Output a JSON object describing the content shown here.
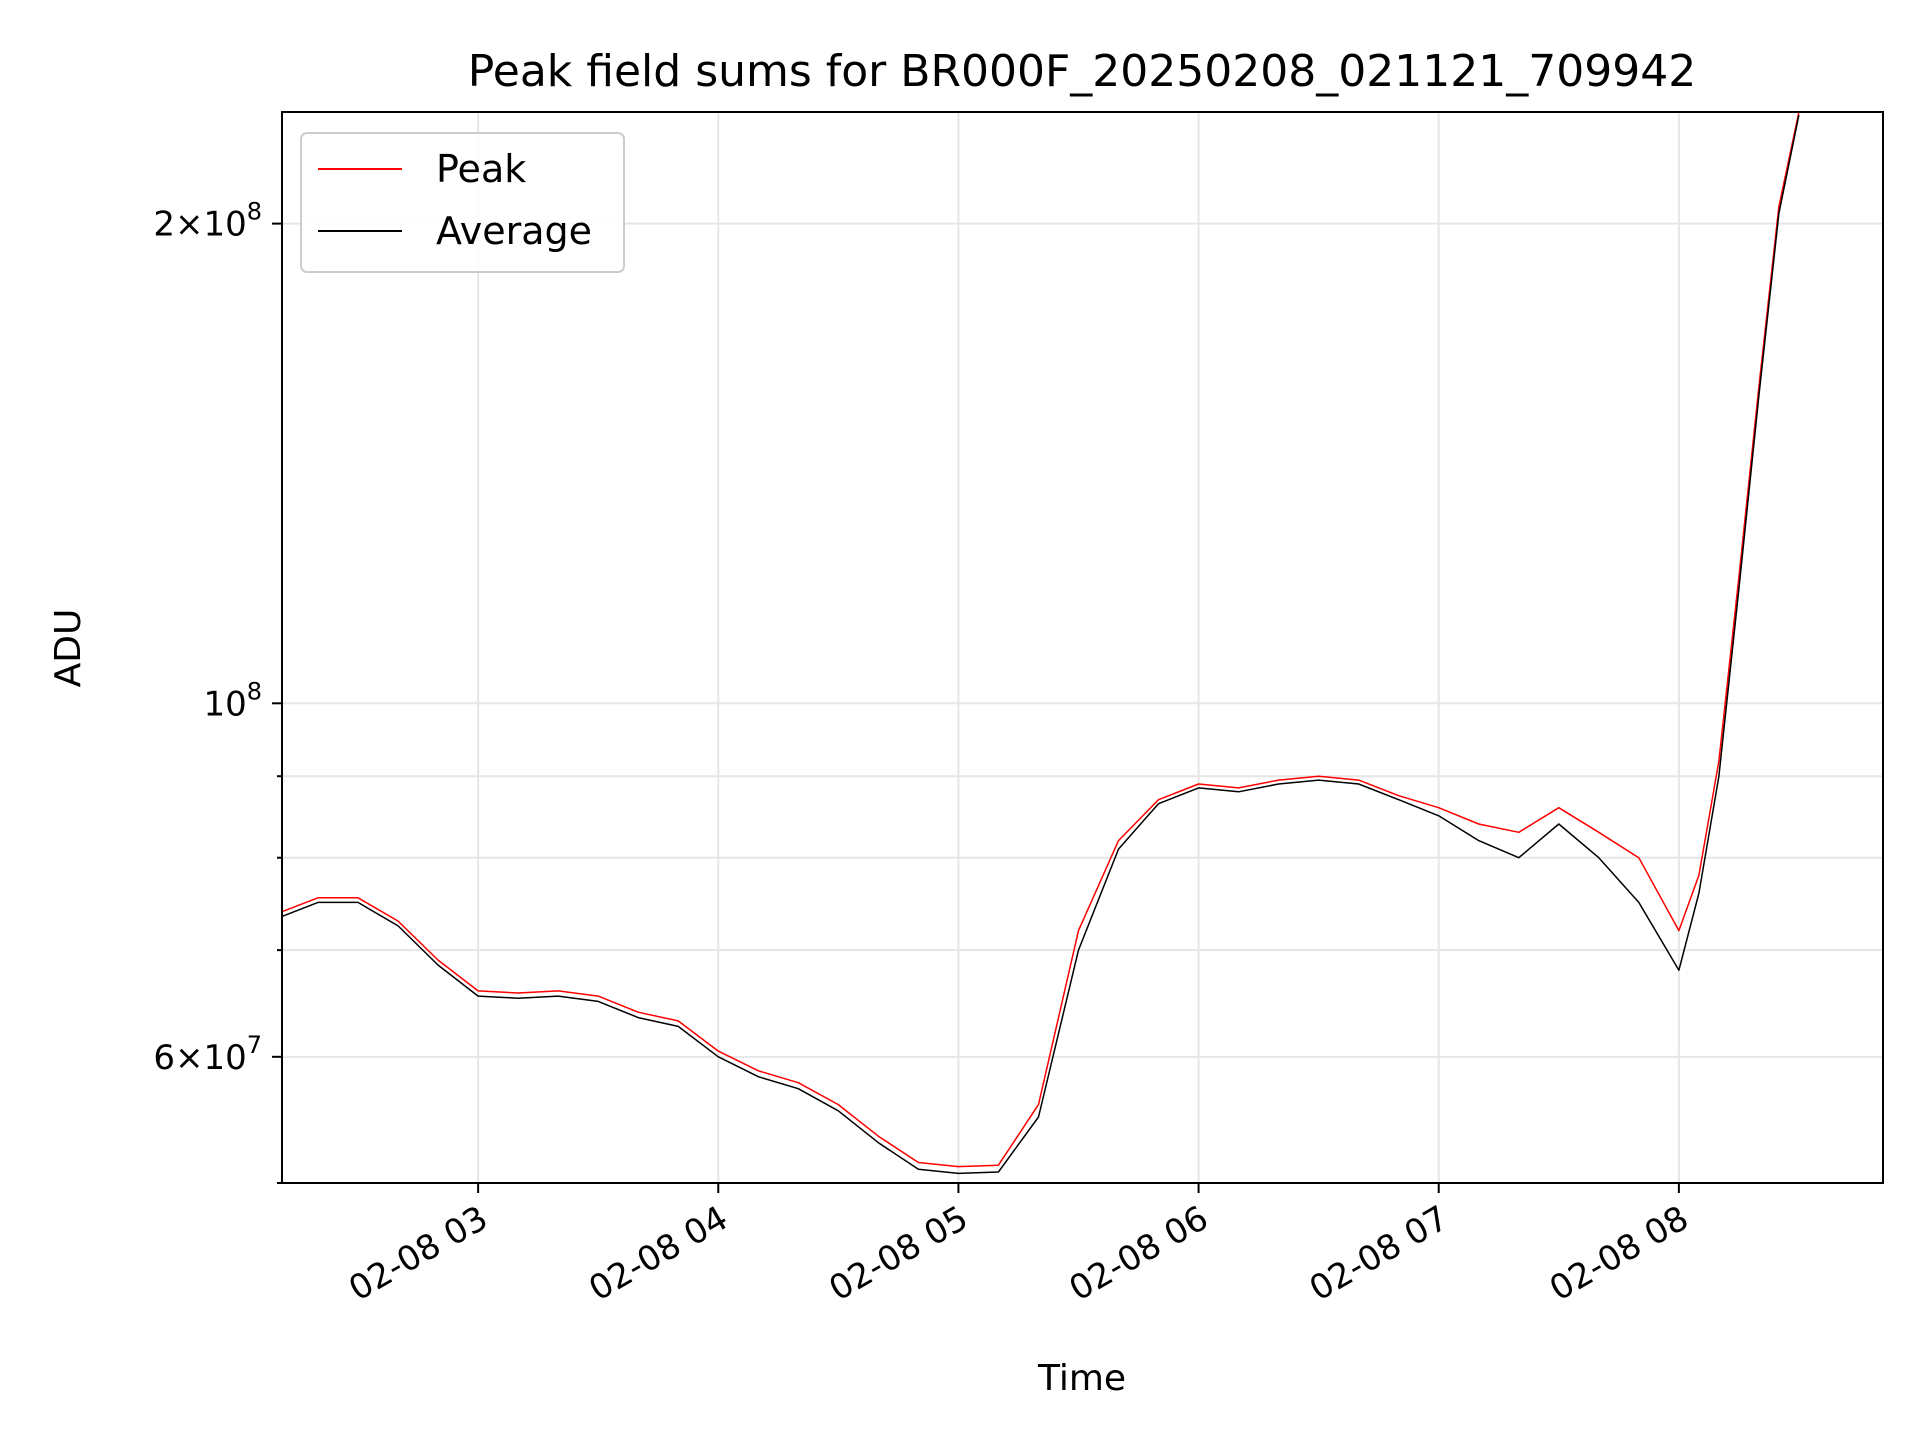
{
  "chart_data": {
    "type": "line",
    "title": "Peak field sums for BR000F_20250208_021121_709942",
    "xlabel": "Time",
    "ylabel": "ADU",
    "y_scale": "log",
    "xlim": [
      "02-08 02:11",
      "02-08 08:51"
    ],
    "ylim": [
      50000000,
      235000000
    ],
    "grid": true,
    "legend_position": "top-left",
    "x_ticks": [
      "02-08 03",
      "02-08 04",
      "02-08 05",
      "02-08 06",
      "02-08 07",
      "02-08 08"
    ],
    "y_ticks": [
      {
        "base": "6",
        "exp": "7",
        "value": 60000000
      },
      {
        "base": "",
        "exp": "8",
        "value": 100000000
      },
      {
        "base": "2",
        "exp": "8",
        "value": 200000000
      }
    ],
    "series": [
      {
        "name": "Peak",
        "color": "#ff0000",
        "x": [
          "02-08 02:11",
          "02-08 02:20",
          "02-08 02:30",
          "02-08 02:40",
          "02-08 02:50",
          "02-08 03:00",
          "02-08 03:10",
          "02-08 03:20",
          "02-08 03:30",
          "02-08 03:40",
          "02-08 03:50",
          "02-08 04:00",
          "02-08 04:10",
          "02-08 04:20",
          "02-08 04:30",
          "02-08 04:40",
          "02-08 04:50",
          "02-08 05:00",
          "02-08 05:10",
          "02-08 05:20",
          "02-08 05:30",
          "02-08 05:40",
          "02-08 05:50",
          "02-08 06:00",
          "02-08 06:10",
          "02-08 06:20",
          "02-08 06:30",
          "02-08 06:40",
          "02-08 06:50",
          "02-08 07:00",
          "02-08 07:10",
          "02-08 07:20",
          "02-08 07:30",
          "02-08 07:40",
          "02-08 07:50",
          "02-08 08:00",
          "02-08 08:05",
          "02-08 08:10",
          "02-08 08:15",
          "02-08 08:20",
          "02-08 08:25",
          "02-08 08:30"
        ],
        "values": [
          74000000,
          75500000,
          75500000,
          73000000,
          69000000,
          66000000,
          65800000,
          66000000,
          65500000,
          64000000,
          63200000,
          60500000,
          58800000,
          57800000,
          56000000,
          53500000,
          51500000,
          51200000,
          51300000,
          56000000,
          72000000,
          82000000,
          87000000,
          89000000,
          88500000,
          89500000,
          90000000,
          89500000,
          87500000,
          86000000,
          84000000,
          83000000,
          86000000,
          83000000,
          80000000,
          72000000,
          78000000,
          92000000,
          120000000,
          158000000,
          205000000,
          235000000
        ]
      },
      {
        "name": "Average",
        "color": "#000000",
        "x": [
          "02-08 02:11",
          "02-08 02:20",
          "02-08 02:30",
          "02-08 02:40",
          "02-08 02:50",
          "02-08 03:00",
          "02-08 03:10",
          "02-08 03:20",
          "02-08 03:30",
          "02-08 03:40",
          "02-08 03:50",
          "02-08 04:00",
          "02-08 04:10",
          "02-08 04:20",
          "02-08 04:30",
          "02-08 04:40",
          "02-08 04:50",
          "02-08 05:00",
          "02-08 05:10",
          "02-08 05:20",
          "02-08 05:30",
          "02-08 05:40",
          "02-08 05:50",
          "02-08 06:00",
          "02-08 06:10",
          "02-08 06:20",
          "02-08 06:30",
          "02-08 06:40",
          "02-08 06:50",
          "02-08 07:00",
          "02-08 07:10",
          "02-08 07:20",
          "02-08 07:30",
          "02-08 07:40",
          "02-08 07:50",
          "02-08 08:00",
          "02-08 08:05",
          "02-08 08:10",
          "02-08 08:15",
          "02-08 08:20",
          "02-08 08:25",
          "02-08 08:30"
        ],
        "values": [
          73500000,
          75000000,
          75000000,
          72500000,
          68500000,
          65500000,
          65300000,
          65500000,
          65000000,
          63500000,
          62700000,
          60000000,
          58300000,
          57300000,
          55500000,
          53000000,
          51000000,
          50700000,
          50800000,
          55000000,
          70000000,
          81000000,
          86500000,
          88500000,
          88000000,
          89000000,
          89500000,
          89000000,
          87000000,
          85000000,
          82000000,
          80000000,
          84000000,
          80000000,
          75000000,
          68000000,
          76000000,
          90000000,
          118000000,
          156000000,
          203000000,
          234000000
        ]
      }
    ]
  }
}
